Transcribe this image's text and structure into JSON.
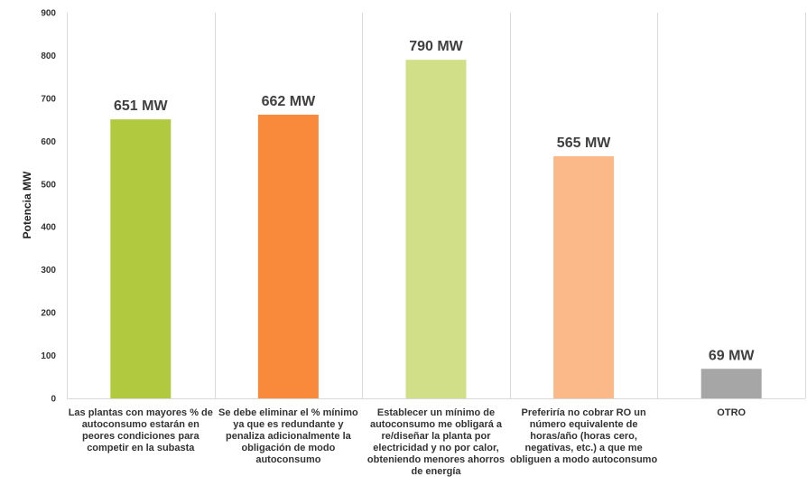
{
  "chart_data": {
    "type": "bar",
    "categories": [
      "Las plantas con mayores % de autoconsumo estarán en peores condiciones para competir en la subasta",
      "Se debe eliminar el % mínimo ya que es redundante y penaliza adicionalmente la obligación de modo autoconsumo",
      "Establecer un mínimo de autoconsumo me obligará a re/diseñar la planta por electricidad y no por calor, obteniendo menores ahorros de energía",
      "Preferiría no cobrar RO un número equivalente de horas/año (horas cero, negativas, etc.) a que me obliguen a modo autoconsumo",
      "OTRO"
    ],
    "values": [
      651,
      662,
      790,
      565,
      69
    ],
    "data_labels": [
      "651 MW",
      "662 MW",
      "790 MW",
      "565 MW",
      "69 MW"
    ],
    "bar_colors": [
      "#b0c93f",
      "#f98a3c",
      "#d0df88",
      "#fbb98a",
      "#a6a6a6"
    ],
    "ylabel": "Potencia MW",
    "ylim": [
      0,
      900
    ],
    "yticks": [
      "0",
      "100",
      "200",
      "300",
      "400",
      "500",
      "600",
      "700",
      "800",
      "900"
    ],
    "grid": "vertical separators between categories",
    "legend": "none"
  }
}
